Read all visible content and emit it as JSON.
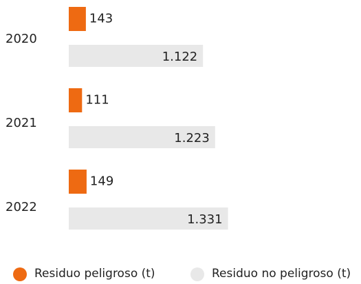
{
  "chart_data": {
    "type": "bar",
    "orientation": "horizontal",
    "categories": [
      "2020",
      "2021",
      "2022"
    ],
    "series": [
      {
        "name": "Residuo peligroso (t)",
        "color": "#ee6a12",
        "values": [
          143,
          111,
          149
        ]
      },
      {
        "name": "Residuo no peligroso (t)",
        "color": "#e8e8e8",
        "values": [
          1122,
          1223,
          1331
        ],
        "value_labels": [
          "1.122",
          "1.223",
          "1.331"
        ]
      }
    ]
  }
}
